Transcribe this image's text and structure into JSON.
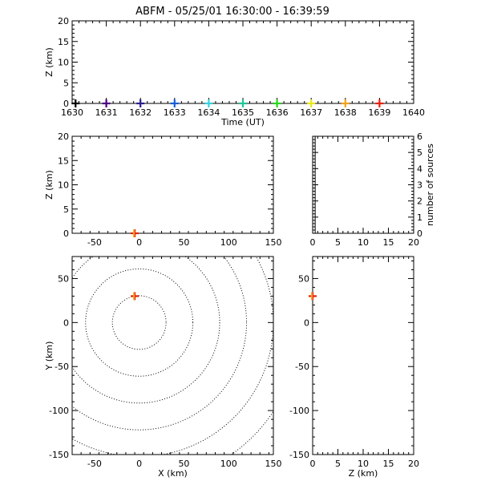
{
  "title": "ABFM - 05/25/01 16:30:00 - 16:39:59",
  "chart_data": [
    {
      "type": "scatter",
      "panel": "time-height",
      "xlabel": "Time (UT)",
      "ylabel": "Z (km)",
      "xlim": [
        1630,
        1640
      ],
      "ylim": [
        0,
        20
      ],
      "xticks": [
        1630,
        1631,
        1632,
        1633,
        1634,
        1635,
        1636,
        1637,
        1638,
        1639,
        1640
      ],
      "yticks": [
        0,
        5,
        10,
        15,
        20
      ],
      "points": [
        {
          "x": 1630.1,
          "y": 0,
          "color": "#000000"
        },
        {
          "x": 1631.0,
          "y": 0,
          "color": "#4b0082"
        },
        {
          "x": 1632.0,
          "y": 0,
          "color": "#2a1f8f"
        },
        {
          "x": 1633.0,
          "y": 0,
          "color": "#1560d8"
        },
        {
          "x": 1634.0,
          "y": 0,
          "color": "#38d0e0"
        },
        {
          "x": 1635.0,
          "y": 0,
          "color": "#19c79a"
        },
        {
          "x": 1636.0,
          "y": 0,
          "color": "#27d81a"
        },
        {
          "x": 1637.0,
          "y": 0,
          "color": "#e8e818"
        },
        {
          "x": 1638.0,
          "y": 0,
          "color": "#f2a21a"
        },
        {
          "x": 1639.0,
          "y": 0,
          "color": "#e8200f"
        }
      ]
    },
    {
      "type": "scatter",
      "panel": "x-height",
      "xlabel": "",
      "ylabel": "Z (km)",
      "xlim": [
        -75,
        150
      ],
      "ylim": [
        0,
        20
      ],
      "xticks": [
        -50,
        0,
        50,
        100,
        150
      ],
      "yticks": [
        0,
        5,
        10,
        15,
        20
      ],
      "points": [
        {
          "x": -5,
          "y": 0,
          "color": "#e8200f"
        }
      ]
    },
    {
      "type": "bar",
      "panel": "altitude-histogram",
      "xlabel": "",
      "ylabel": "number of sources",
      "xlim": [
        0,
        20
      ],
      "ylim": [
        0,
        6
      ],
      "xticks": [
        0,
        5,
        10,
        15,
        20
      ],
      "yticks": [
        0,
        1,
        2,
        3,
        4,
        5,
        6
      ],
      "bins": [
        {
          "from": 0,
          "to": 0.5,
          "count": 6
        }
      ]
    },
    {
      "type": "scatter",
      "panel": "plan-view",
      "xlabel": "X (km)",
      "ylabel": "Y (km)",
      "xlim": [
        -75,
        150
      ],
      "ylim": [
        -150,
        75
      ],
      "xticks": [
        -50,
        0,
        50,
        100,
        150
      ],
      "yticks": [
        -150,
        -100,
        -50,
        0,
        50
      ],
      "range_rings_km": [
        30,
        60,
        90,
        120,
        150,
        180
      ],
      "points": [
        {
          "x": -5,
          "y": 30,
          "color": "#e8200f"
        }
      ]
    },
    {
      "type": "scatter",
      "panel": "height-y",
      "xlabel": "Z (km)",
      "ylabel": "",
      "xlim": [
        0,
        20
      ],
      "ylim": [
        -150,
        75
      ],
      "xticks": [
        0,
        5,
        10,
        15,
        20
      ],
      "yticks": [
        -150,
        -100,
        -50,
        0,
        50
      ],
      "points": [
        {
          "x": 0,
          "y": 30,
          "color": "#e8200f"
        }
      ]
    }
  ]
}
